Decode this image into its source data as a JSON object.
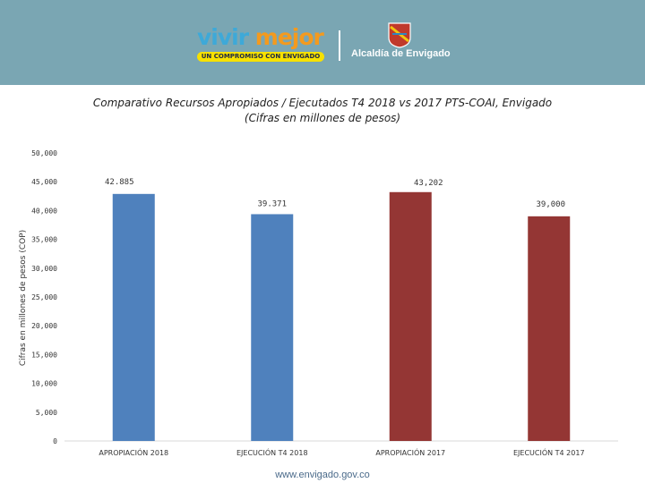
{
  "banner": {
    "logo_word1": "vivir",
    "logo_word2": "mejor",
    "logo_tagline": "UN COMPROMISO CON ENVIGADO",
    "org_name": "Alcaldía de Envigado",
    "background_color": "#7aa6b3"
  },
  "footer": {
    "url": "www.envigado.gov.co"
  },
  "chart_data": {
    "type": "bar",
    "title": "Comparativo Recursos Apropiados / Ejecutados T4 2018 vs 2017 PTS-COAI, Envigado",
    "subtitle": "(Cifras en millones de pesos)",
    "xlabel": "",
    "ylabel": "Cifras en millones de pesos (COP)",
    "ylim": [
      0,
      50000
    ],
    "y_ticks": [
      "0",
      "5,000",
      "10,000",
      "15,000",
      "20,000",
      "25,000",
      "30,000",
      "35,000",
      "40,000",
      "45,000",
      "50,000"
    ],
    "y_tick_values": [
      0,
      5000,
      10000,
      15000,
      20000,
      25000,
      30000,
      35000,
      40000,
      45000,
      50000
    ],
    "categories": [
      "APROPIACIÓN 2018",
      "EJECUCIÓN T4 2018",
      "APROPIACIÓN 2017",
      "EJECUCIÓN T4 2017"
    ],
    "values": [
      42885,
      39371,
      43202,
      39000
    ],
    "data_labels": [
      "42.885",
      "39.371",
      "43,202",
      "39,000"
    ],
    "colors": [
      "#4f81bd",
      "#4f81bd",
      "#943634",
      "#943634"
    ],
    "grid": false,
    "legend": "none"
  }
}
